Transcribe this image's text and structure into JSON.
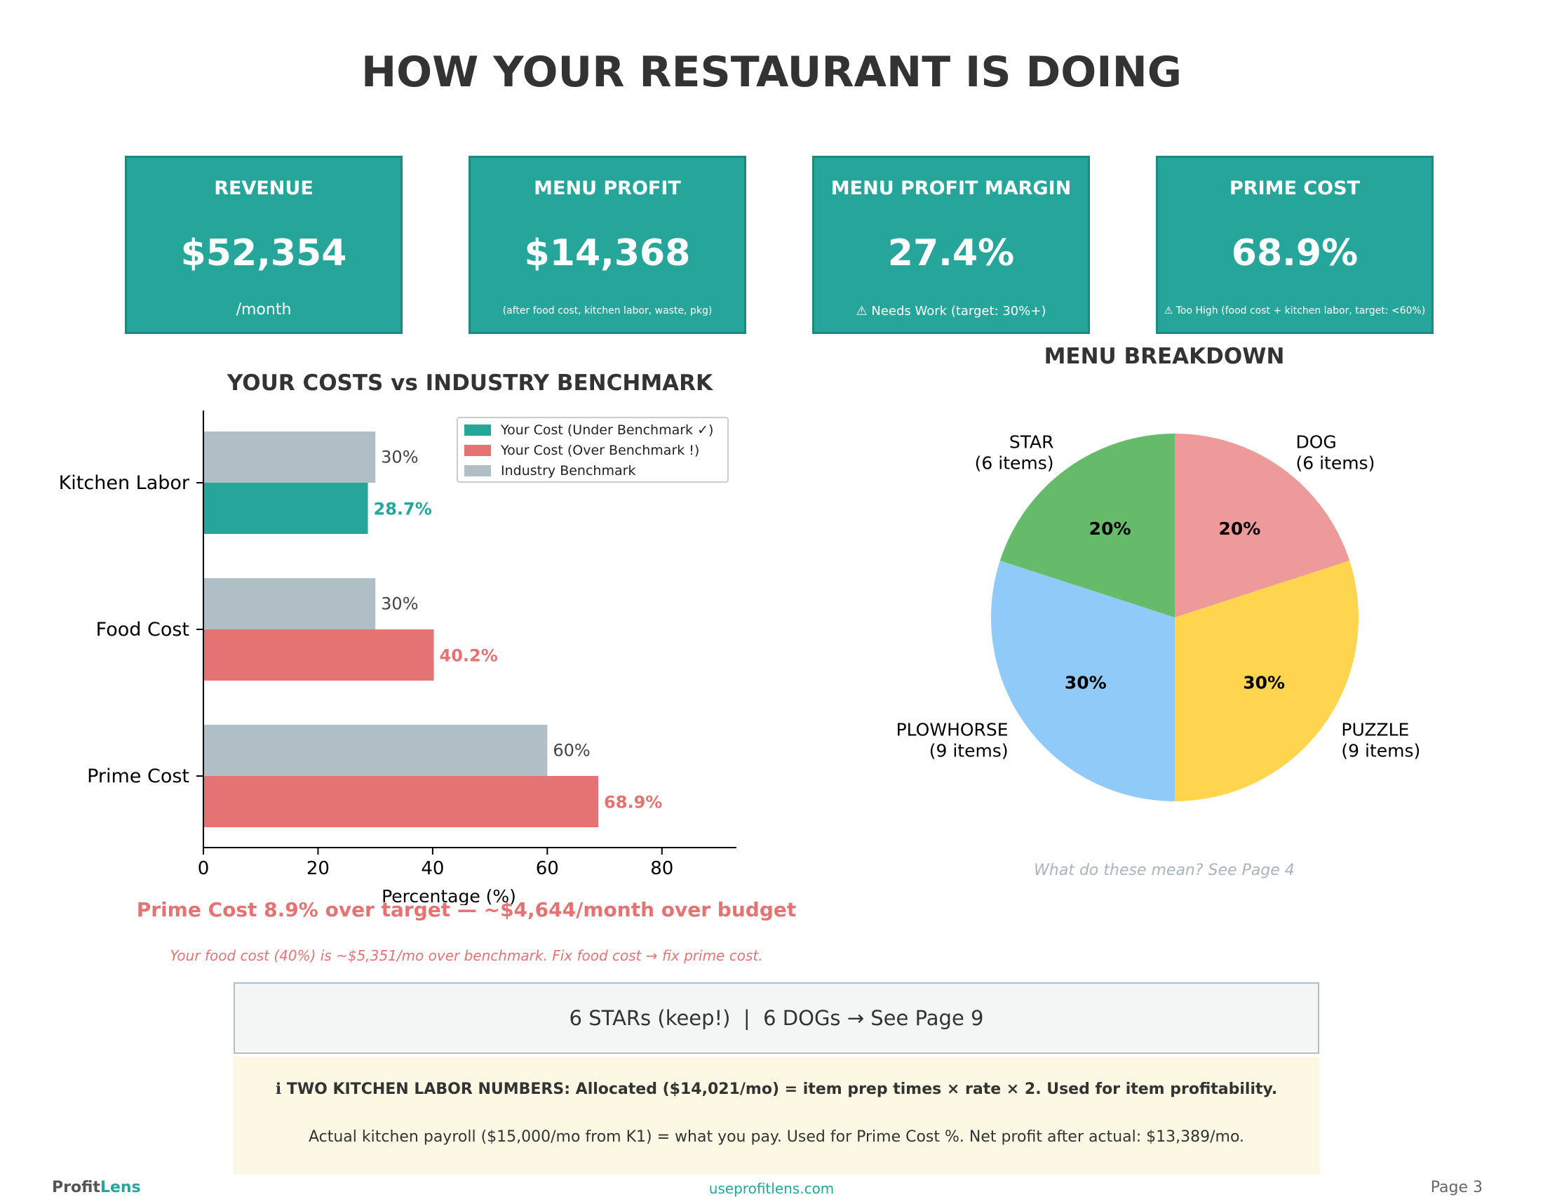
{
  "page": {
    "title": "HOW YOUR RESTAURANT IS DOING",
    "number": "Page 3"
  },
  "kpis": [
    {
      "label": "REVENUE",
      "value": "$52,354",
      "sub": "/month"
    },
    {
      "label": "MENU PROFIT",
      "value": "$14,368",
      "sub": "(after food cost, kitchen labor, waste, pkg)"
    },
    {
      "label": "MENU PROFIT MARGIN",
      "value": "27.4%",
      "sub": "⚠ Needs Work (target: 30%+)"
    },
    {
      "label": "PRIME COST",
      "value": "68.9%",
      "sub": "⚠ Too High (food cost + kitchen labor, target: <60%)"
    }
  ],
  "colors": {
    "teal": "#26a69a",
    "red": "#e57373",
    "grey": "#b0bec5",
    "star": "#66bb6a",
    "dog": "#ef9a9a",
    "puzzle": "#ffd54f",
    "plowhorse": "#90caf9"
  },
  "chart_data": [
    {
      "type": "bar",
      "orientation": "horizontal",
      "title": "YOUR COSTS vs INDUSTRY BENCHMARK",
      "xlabel": "Percentage (%)",
      "xlim": [
        0,
        93
      ],
      "xticks": [
        "0",
        "20",
        "40",
        "60",
        "80"
      ],
      "categories": [
        "Kitchen Labor",
        "Food Cost",
        "Prime Cost"
      ],
      "series": [
        {
          "name": "Industry Benchmark",
          "values": [
            30,
            30,
            60
          ],
          "labels": [
            "30%",
            "30%",
            "60%"
          ]
        },
        {
          "name": "Your Cost",
          "values": [
            28.7,
            40.2,
            68.9
          ],
          "labels": [
            "28.7%",
            "40.2%",
            "68.9%"
          ],
          "status": [
            "under",
            "over",
            "over"
          ]
        }
      ],
      "legend": {
        "position": "top-right",
        "entries": [
          "Your Cost (Under Benchmark ✓)",
          "Your Cost (Over Benchmark !)",
          "Industry Benchmark"
        ]
      }
    },
    {
      "type": "pie",
      "title": "MENU BREAKDOWN",
      "slices": [
        {
          "name": "DOG",
          "count_label": "(6 items)",
          "value": 20,
          "label": "20%"
        },
        {
          "name": "PUZZLE",
          "count_label": "(9 items)",
          "value": 30,
          "label": "30%"
        },
        {
          "name": "PLOWHORSE",
          "count_label": "(9 items)",
          "value": 30,
          "label": "30%"
        },
        {
          "name": "STAR",
          "count_label": "(6 items)",
          "value": 20,
          "label": "20%"
        }
      ]
    }
  ],
  "notes": {
    "prime": "Prime Cost 8.9% over target — ~$4,644/month over budget",
    "food": "Your food cost (40%) is ~$5,351/mo over benchmark. Fix food cost → fix prime cost.",
    "pie_hint": "What do these mean? See Page 4"
  },
  "summary": "6 STARs (keep!)  |  6 DOGs → See Page 9",
  "info": {
    "line1": "ℹ TWO KITCHEN LABOR NUMBERS: Allocated ($14,021/mo) = item prep times × rate × 2. Used for item profitability.",
    "line2": "Actual kitchen payroll ($15,000/mo from K1) = what you pay. Used for Prime Cost %. Net profit after actual: $13,389/mo."
  },
  "footer": {
    "logo_pro": "Profit",
    "logo_lens": "Lens",
    "url": "useprofitlens.com"
  }
}
